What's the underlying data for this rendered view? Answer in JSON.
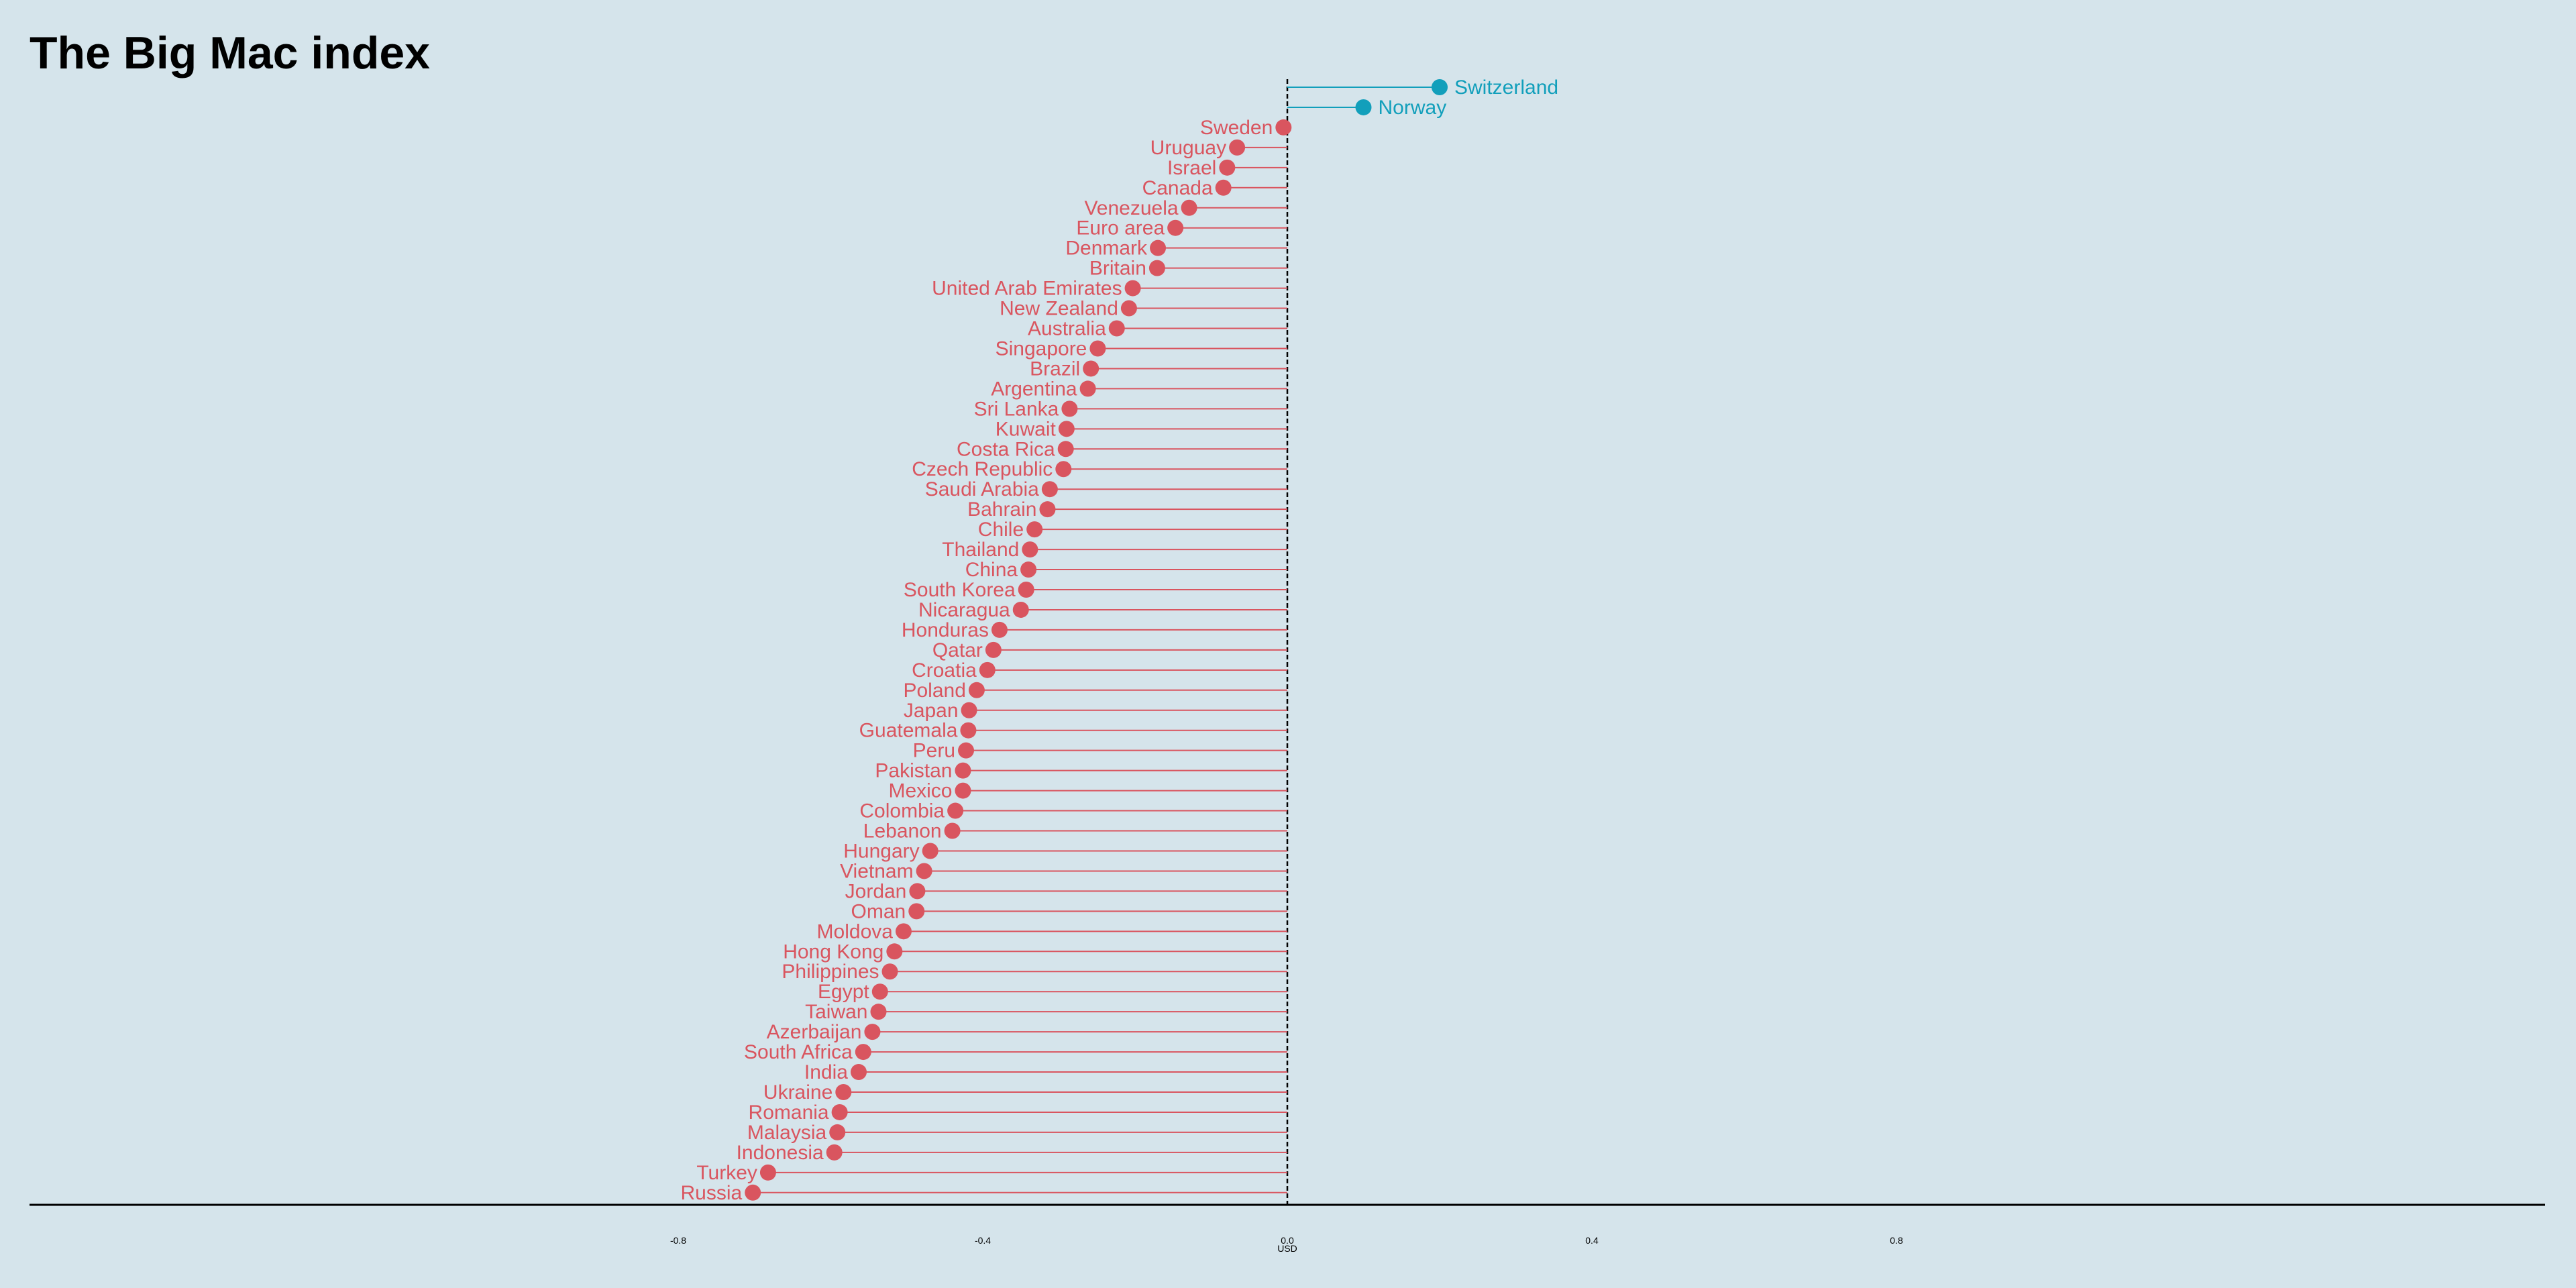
{
  "chart_data": {
    "type": "lollipop",
    "title": "The Big Mac index",
    "xlabel": "USD",
    "xlim": [
      -0.8,
      0.8
    ],
    "xticks": [
      -0.8,
      -0.4,
      0.0,
      0.4,
      0.8
    ],
    "xtick_labels": [
      "-0.8",
      "-0.4",
      "0.0",
      "0.4",
      "0.8"
    ],
    "grid": false,
    "colors": {
      "positive": "#129fbb",
      "negative": "#d9555f",
      "background": "#d5e4eb"
    },
    "points": [
      {
        "country": "Switzerland",
        "value": 0.2
      },
      {
        "country": "Norway",
        "value": 0.1
      },
      {
        "country": "Sweden",
        "value": -0.005
      },
      {
        "country": "Uruguay",
        "value": -0.066
      },
      {
        "country": "Israel",
        "value": -0.079
      },
      {
        "country": "Canada",
        "value": -0.084
      },
      {
        "country": "Venezuela",
        "value": -0.129
      },
      {
        "country": "Euro area",
        "value": -0.147
      },
      {
        "country": "Denmark",
        "value": -0.17
      },
      {
        "country": "Britain",
        "value": -0.171
      },
      {
        "country": "United Arab Emirates",
        "value": -0.203
      },
      {
        "country": "New Zealand",
        "value": -0.208
      },
      {
        "country": "Australia",
        "value": -0.224
      },
      {
        "country": "Singapore",
        "value": -0.249
      },
      {
        "country": "Brazil",
        "value": -0.258
      },
      {
        "country": "Argentina",
        "value": -0.262
      },
      {
        "country": "Sri Lanka",
        "value": -0.286
      },
      {
        "country": "Kuwait",
        "value": -0.29
      },
      {
        "country": "Costa Rica",
        "value": -0.291
      },
      {
        "country": "Czech Republic",
        "value": -0.294
      },
      {
        "country": "Saudi Arabia",
        "value": -0.312
      },
      {
        "country": "Bahrain",
        "value": -0.315
      },
      {
        "country": "Chile",
        "value": -0.332
      },
      {
        "country": "Thailand",
        "value": -0.338
      },
      {
        "country": "China",
        "value": -0.34
      },
      {
        "country": "South Korea",
        "value": -0.343
      },
      {
        "country": "Nicaragua",
        "value": -0.35
      },
      {
        "country": "Honduras",
        "value": -0.378
      },
      {
        "country": "Qatar",
        "value": -0.386
      },
      {
        "country": "Croatia",
        "value": -0.394
      },
      {
        "country": "Poland",
        "value": -0.408
      },
      {
        "country": "Japan",
        "value": -0.418
      },
      {
        "country": "Guatemala",
        "value": -0.419
      },
      {
        "country": "Peru",
        "value": -0.422
      },
      {
        "country": "Pakistan",
        "value": -0.426
      },
      {
        "country": "Mexico",
        "value": -0.426
      },
      {
        "country": "Colombia",
        "value": -0.436
      },
      {
        "country": "Lebanon",
        "value": -0.44
      },
      {
        "country": "Hungary",
        "value": -0.469
      },
      {
        "country": "Vietnam",
        "value": -0.477
      },
      {
        "country": "Jordan",
        "value": -0.486
      },
      {
        "country": "Oman",
        "value": -0.487
      },
      {
        "country": "Moldova",
        "value": -0.504
      },
      {
        "country": "Hong Kong",
        "value": -0.516
      },
      {
        "country": "Philippines",
        "value": -0.522
      },
      {
        "country": "Egypt",
        "value": -0.535
      },
      {
        "country": "Taiwan",
        "value": -0.537
      },
      {
        "country": "Azerbaijan",
        "value": -0.545
      },
      {
        "country": "South Africa",
        "value": -0.557
      },
      {
        "country": "India",
        "value": -0.563
      },
      {
        "country": "Ukraine",
        "value": -0.583
      },
      {
        "country": "Romania",
        "value": -0.588
      },
      {
        "country": "Malaysia",
        "value": -0.591
      },
      {
        "country": "Indonesia",
        "value": -0.595
      },
      {
        "country": "Turkey",
        "value": -0.682
      },
      {
        "country": "Russia",
        "value": -0.702
      }
    ]
  }
}
